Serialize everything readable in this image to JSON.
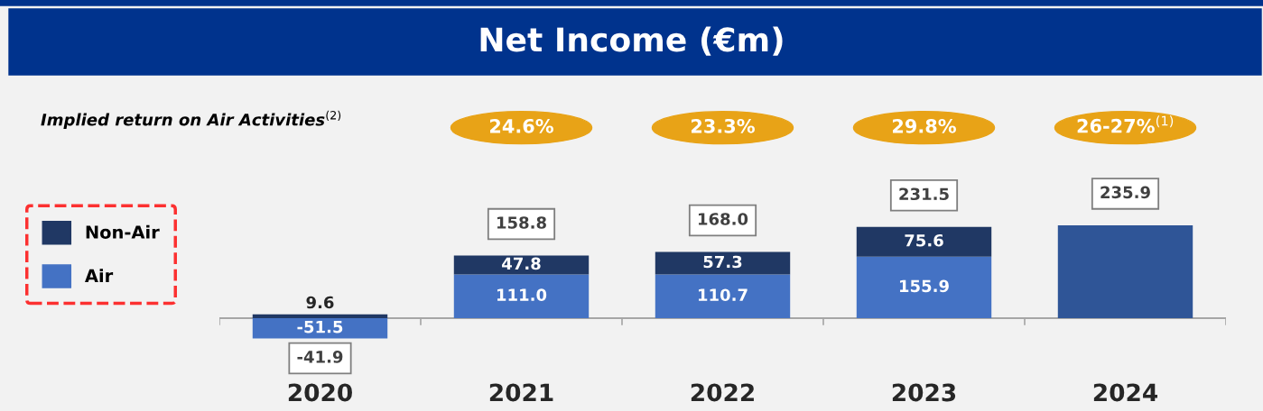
{
  "chart_data": {
    "type": "bar",
    "title": "Net Income (€m)",
    "stacked": true,
    "data_labels": true,
    "legend": "left",
    "categories": [
      "2020",
      "2021",
      "2022",
      "2023",
      "2024"
    ],
    "series": [
      {
        "name": "Air",
        "color": "#4472c4",
        "values": [
          -51.5,
          111.0,
          110.7,
          155.9,
          null
        ],
        "value_labels": [
          "-51.5",
          "111.0",
          "110.7",
          "155.9",
          null
        ]
      },
      {
        "name": "Non-Air",
        "color": "#203864",
        "values": [
          9.6,
          47.8,
          57.3,
          75.6,
          null
        ],
        "value_labels": [
          "9.6",
          "47.8",
          "57.3",
          "75.6",
          null
        ]
      },
      {
        "color": "#2f5597",
        "values": [
          null,
          null,
          null,
          null,
          235.9
        ],
        "value_labels": [
          null,
          null,
          null,
          null,
          null
        ]
      }
    ],
    "totals": [
      "-41.9",
      "158.8",
      "168.0",
      "231.5",
      "235.9"
    ],
    "annotations": [
      "Implied return on Air Activities$^{(2)}$",
      "24.6%",
      "23.3%",
      "29.8%",
      "26-27%$^{(1)}$"
    ]
  }
}
